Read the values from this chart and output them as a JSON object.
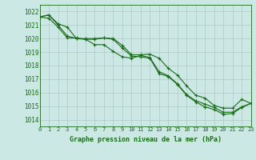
{
  "title": "Graphe pression niveau de la mer (hPa)",
  "bg_color": "#cce8e4",
  "grid_color": "#b0c8c4",
  "line_color": "#1a6b1a",
  "xlim": [
    0,
    23
  ],
  "ylim": [
    1013.5,
    1022.5
  ],
  "yticks": [
    1014,
    1015,
    1016,
    1017,
    1018,
    1019,
    1020,
    1021,
    1022
  ],
  "xticks": [
    0,
    1,
    2,
    3,
    4,
    5,
    6,
    7,
    8,
    9,
    10,
    11,
    12,
    13,
    14,
    15,
    16,
    17,
    18,
    19,
    20,
    21,
    22,
    23
  ],
  "series1_x": [
    0,
    1,
    2,
    3,
    4,
    5,
    6,
    7,
    8,
    9,
    10,
    11,
    12,
    13,
    14,
    15,
    16,
    17,
    18,
    19,
    20,
    21,
    22,
    23
  ],
  "series1_y": [
    1021.6,
    1021.75,
    1021.1,
    1020.85,
    1020.0,
    1019.95,
    1019.95,
    1020.05,
    1020.0,
    1019.5,
    1018.8,
    1018.8,
    1018.85,
    1018.55,
    1017.8,
    1017.3,
    1016.5,
    1015.8,
    1015.6,
    1015.05,
    1014.85,
    1014.85,
    1015.5,
    1015.2
  ],
  "series2_x": [
    0,
    1,
    2,
    3,
    4,
    5,
    6,
    7,
    8,
    9,
    10,
    11,
    12,
    13,
    14,
    15,
    16,
    17,
    18,
    19,
    20,
    21,
    22,
    23
  ],
  "series2_y": [
    1021.6,
    1021.75,
    1021.0,
    1020.2,
    1020.0,
    1020.0,
    1020.0,
    1020.05,
    1019.95,
    1019.3,
    1018.7,
    1018.65,
    1018.55,
    1017.4,
    1017.2,
    1016.6,
    1015.8,
    1015.3,
    1014.95,
    1014.75,
    1014.4,
    1014.45,
    1014.9,
    1015.2
  ],
  "series3_x": [
    0,
    1,
    2,
    3,
    4,
    5,
    6,
    7,
    8,
    9,
    10,
    11,
    12,
    13,
    14,
    15,
    16,
    17,
    18,
    19,
    20,
    21,
    22,
    23
  ],
  "series3_y": [
    1021.6,
    1021.5,
    1020.85,
    1020.05,
    1020.05,
    1019.95,
    1019.55,
    1019.55,
    1019.05,
    1018.65,
    1018.55,
    1018.75,
    1018.6,
    1017.55,
    1017.25,
    1016.65,
    1015.85,
    1015.4,
    1015.15,
    1014.9,
    1014.55,
    1014.55,
    1014.95,
    1015.2
  ]
}
